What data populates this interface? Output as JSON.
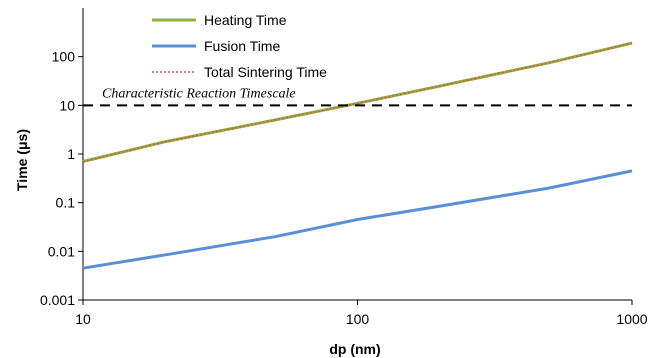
{
  "chart_data": {
    "type": "line",
    "x_scale": "log",
    "y_scale": "log",
    "xlim": [
      10,
      1000
    ],
    "ylim": [
      0.001,
      1000
    ],
    "xlabel": "dp (nm)",
    "ylabel": "Time (μs)",
    "x_ticks": [
      "10",
      "100",
      "1000"
    ],
    "y_ticks": [
      "0.001",
      "0.01",
      "0.1",
      "1",
      "10",
      "100"
    ],
    "grid": false,
    "legend_position": "top-left",
    "series": [
      {
        "name": "Heating Time",
        "color": "#8db33d",
        "style": "solid",
        "x": [
          10,
          20,
          50,
          100,
          200,
          500,
          1000
        ],
        "y": [
          0.7,
          1.8,
          5,
          11,
          25,
          75,
          190
        ]
      },
      {
        "name": "Fusion Time",
        "color": "#5a8fd6",
        "style": "solid",
        "x": [
          10,
          20,
          50,
          100,
          200,
          500,
          1000
        ],
        "y": [
          0.0045,
          0.0085,
          0.02,
          0.045,
          0.085,
          0.2,
          0.45
        ]
      },
      {
        "name": "Total Sintering Time",
        "color": "#d9534f",
        "style": "dotted",
        "x": [
          10,
          20,
          50,
          100,
          200,
          500,
          1000
        ],
        "y": [
          0.7,
          1.8,
          5,
          11,
          25,
          75,
          190
        ]
      }
    ],
    "reference_lines": [
      {
        "label": "Characteristic Reaction Timescale",
        "y": 10,
        "style": "dashed",
        "color": "#000000"
      }
    ]
  }
}
